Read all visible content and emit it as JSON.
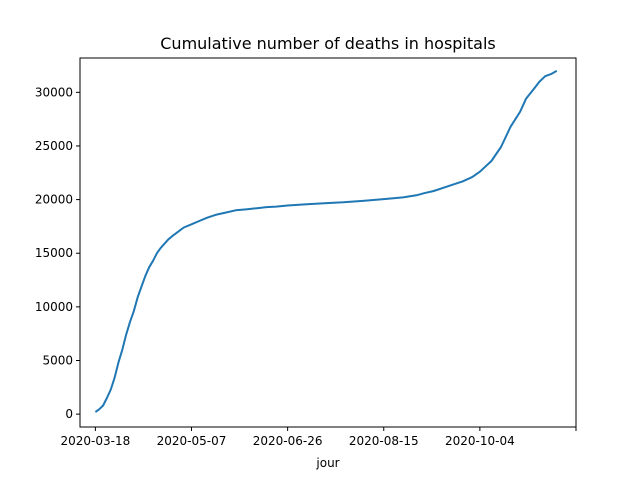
{
  "chart_data": {
    "type": "line",
    "title": "Cumulative number of deaths in hospitals",
    "xlabel": "jour",
    "ylabel": "",
    "x_type": "date",
    "xlim": [
      "2020-03-10",
      "2020-11-23"
    ],
    "ylim": [
      -1200,
      33200
    ],
    "grid": false,
    "legend": "none",
    "line_color": "#1f77b4",
    "x_ticks": [
      "2020-03-18",
      "2020-05-07",
      "2020-06-26",
      "2020-08-15",
      "2020-10-04",
      ""
    ],
    "y_ticks": [
      0,
      5000,
      10000,
      15000,
      20000,
      25000,
      30000
    ],
    "y_tick_labels": [
      "0",
      "5000",
      "10000",
      "15000",
      "20000",
      "25000",
      "30000"
    ],
    "series": [
      {
        "x": [
          "2020-03-18",
          "2020-03-20",
          "2020-03-22",
          "2020-03-24",
          "2020-03-26",
          "2020-03-28",
          "2020-03-30",
          "2020-04-01",
          "2020-04-03",
          "2020-04-05",
          "2020-04-07",
          "2020-04-09",
          "2020-04-11",
          "2020-04-13",
          "2020-04-15",
          "2020-04-17",
          "2020-04-19",
          "2020-04-21",
          "2020-04-23",
          "2020-04-25",
          "2020-04-27",
          "2020-04-30",
          "2020-05-03",
          "2020-05-07",
          "2020-05-11",
          "2020-05-15",
          "2020-05-20",
          "2020-05-25",
          "2020-05-30",
          "2020-06-05",
          "2020-06-10",
          "2020-06-15",
          "2020-06-20",
          "2020-06-26",
          "2020-07-05",
          "2020-07-15",
          "2020-07-25",
          "2020-08-05",
          "2020-08-15",
          "2020-08-25",
          "2020-09-01",
          "2020-09-05",
          "2020-09-10",
          "2020-09-15",
          "2020-09-20",
          "2020-09-25",
          "2020-09-30",
          "2020-10-04",
          "2020-10-10",
          "2020-10-15",
          "2020-10-20",
          "2020-10-25",
          "2020-10-28",
          "2020-11-01",
          "2020-11-04",
          "2020-11-07",
          "2020-11-10",
          "2020-11-12",
          "2020-11-13"
        ],
        "y": [
          200,
          450,
          800,
          1500,
          2300,
          3400,
          4800,
          6000,
          7400,
          8600,
          9600,
          10900,
          11900,
          12900,
          13700,
          14300,
          15000,
          15500,
          15900,
          16300,
          16600,
          17000,
          17400,
          17700,
          18000,
          18300,
          18600,
          18800,
          19000,
          19100,
          19200,
          19300,
          19350,
          19450,
          19550,
          19650,
          19750,
          19900,
          20050,
          20200,
          20400,
          20600,
          20800,
          21100,
          21400,
          21700,
          22100,
          22600,
          23600,
          24900,
          26800,
          28200,
          29400,
          30300,
          31000,
          31500,
          31700,
          31900,
          32000
        ]
      }
    ]
  }
}
